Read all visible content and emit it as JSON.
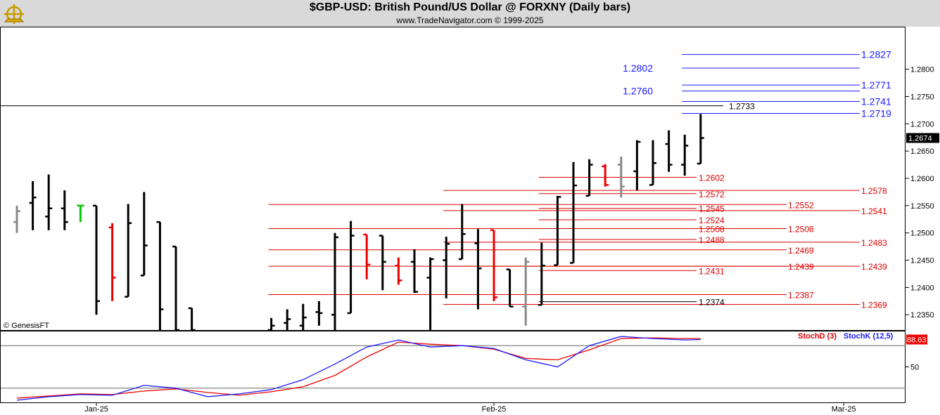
{
  "header": {
    "title": "$GBP-USD:  British Pound/US Dollar @ FORXNY  (Daily bars)",
    "subtitle": "www.TradeNavigator.com © 1999-2025"
  },
  "watermark": "© GenesisFT",
  "colors": {
    "bar": "#000000",
    "bar_gray": "#888888",
    "bar_red": "#ee0000",
    "bar_green": "#00cc00",
    "blue_level": "#1a1aff",
    "red_level": "#dd0000",
    "black_level": "#000000",
    "stoch_d": "#dd0000",
    "stoch_k": "#1a1aff",
    "title_bg": "#d9d9d9"
  },
  "chart_data": [
    {
      "type": "ohlc",
      "title": "$GBP-USD:  British Pound/US Dollar @ FORXNY  (Daily bars)",
      "ylim": [
        1.2322,
        1.2878
      ],
      "y_ticks": [
        "1.2350",
        "1.2400",
        "1.2450",
        "1.2500",
        "1.2550",
        "1.2600",
        "1.2650",
        "1.2700",
        "1.2750",
        "1.2800"
      ],
      "x_ticks": [
        {
          "label": "Jan-25",
          "bar": 5
        },
        {
          "label": "Feb-25",
          "bar": 30
        },
        {
          "label": "Mar-25",
          "bar": 52
        }
      ],
      "last_price": "1.2674",
      "bars": [
        {
          "i": 0,
          "o": 1.252,
          "h": 1.255,
          "l": 1.25,
          "c": 1.254,
          "color": "gray"
        },
        {
          "i": 1,
          "o": 1.2555,
          "h": 1.2595,
          "l": 1.2505,
          "c": 1.2565,
          "color": "black"
        },
        {
          "i": 2,
          "o": 1.253,
          "h": 1.2607,
          "l": 1.2505,
          "c": 1.2545,
          "color": "black"
        },
        {
          "i": 3,
          "o": 1.2545,
          "h": 1.2578,
          "l": 1.2505,
          "c": 1.252,
          "color": "black"
        },
        {
          "i": 4,
          "o": 1.255,
          "h": 1.255,
          "l": 1.252,
          "c": 1.255,
          "color": "green"
        },
        {
          "i": 5,
          "o": 1.255,
          "h": 1.255,
          "l": 1.235,
          "c": 1.2375,
          "color": "black"
        },
        {
          "i": 6,
          "o": 1.251,
          "h": 1.2518,
          "l": 1.2375,
          "c": 1.2418,
          "color": "red"
        },
        {
          "i": 7,
          "o": 1.2383,
          "h": 1.2553,
          "l": 1.2383,
          "c": 1.2518,
          "color": "black"
        },
        {
          "i": 8,
          "o": 1.2422,
          "h": 1.2575,
          "l": 1.2422,
          "c": 1.2477,
          "color": "black"
        },
        {
          "i": 9,
          "o": 1.252,
          "h": 1.252,
          "l": 1.2322,
          "c": 1.236,
          "color": "black"
        },
        {
          "i": 10,
          "o": 1.2475,
          "h": 1.2475,
          "l": 1.2322,
          "c": 1.2322,
          "color": "black"
        },
        {
          "i": 11,
          "o": 1.2362,
          "h": 1.2362,
          "l": 1.2322,
          "c": 1.2322,
          "color": "black"
        },
        {
          "i": 16,
          "o": 1.2322,
          "h": 1.2344,
          "l": 1.2322,
          "c": 1.233,
          "color": "black"
        },
        {
          "i": 17,
          "o": 1.2335,
          "h": 1.236,
          "l": 1.2322,
          "c": 1.2342,
          "color": "black"
        },
        {
          "i": 18,
          "o": 1.233,
          "h": 1.237,
          "l": 1.2322,
          "c": 1.2345,
          "color": "black"
        },
        {
          "i": 19,
          "o": 1.2355,
          "h": 1.2375,
          "l": 1.233,
          "c": 1.2353,
          "color": "black"
        },
        {
          "i": 20,
          "o": 1.235,
          "h": 1.25,
          "l": 1.2322,
          "c": 1.2492,
          "color": "black"
        },
        {
          "i": 21,
          "o": 1.2353,
          "h": 1.2522,
          "l": 1.2353,
          "c": 1.2495,
          "color": "black"
        },
        {
          "i": 22,
          "o": 1.2497,
          "h": 1.2497,
          "l": 1.2415,
          "c": 1.2442,
          "color": "red"
        },
        {
          "i": 23,
          "o": 1.2495,
          "h": 1.2495,
          "l": 1.2395,
          "c": 1.2447,
          "color": "black"
        },
        {
          "i": 24,
          "o": 1.244,
          "h": 1.2455,
          "l": 1.2405,
          "c": 1.2413,
          "color": "red"
        },
        {
          "i": 25,
          "o": 1.2447,
          "h": 1.247,
          "l": 1.239,
          "c": 1.2392,
          "color": "black"
        },
        {
          "i": 26,
          "o": 1.2418,
          "h": 1.2455,
          "l": 1.2322,
          "c": 1.2452,
          "color": "black"
        },
        {
          "i": 27,
          "o": 1.245,
          "h": 1.2493,
          "l": 1.238,
          "c": 1.248,
          "color": "black"
        },
        {
          "i": 28,
          "o": 1.2452,
          "h": 1.2553,
          "l": 1.2452,
          "c": 1.2498,
          "color": "black"
        },
        {
          "i": 29,
          "o": 1.2481,
          "h": 1.2507,
          "l": 1.236,
          "c": 1.2435,
          "color": "black"
        },
        {
          "i": 30,
          "o": 1.2505,
          "h": 1.2505,
          "l": 1.2375,
          "c": 1.2382,
          "color": "red"
        },
        {
          "i": 31,
          "o": 1.2433,
          "h": 1.2433,
          "l": 1.2365,
          "c": 1.2365,
          "color": "black"
        },
        {
          "i": 32,
          "o": 1.2365,
          "h": 1.2455,
          "l": 1.233,
          "c": 1.2447,
          "color": "gray"
        },
        {
          "i": 33,
          "o": 1.2368,
          "h": 1.2482,
          "l": 1.2368,
          "c": 1.244,
          "color": "black"
        },
        {
          "i": 34,
          "o": 1.2441,
          "h": 1.2568,
          "l": 1.2441,
          "c": 1.2566,
          "color": "black"
        },
        {
          "i": 35,
          "o": 1.2445,
          "h": 1.263,
          "l": 1.2445,
          "c": 1.2587,
          "color": "black"
        },
        {
          "i": 36,
          "o": 1.2568,
          "h": 1.2635,
          "l": 1.2568,
          "c": 1.2625,
          "color": "black"
        },
        {
          "i": 37,
          "o": 1.2622,
          "h": 1.2626,
          "l": 1.2585,
          "c": 1.2588,
          "color": "red"
        },
        {
          "i": 38,
          "o": 1.2625,
          "h": 1.264,
          "l": 1.2565,
          "c": 1.2585,
          "color": "gray"
        },
        {
          "i": 39,
          "o": 1.2613,
          "h": 1.267,
          "l": 1.2578,
          "c": 1.2667,
          "color": "black"
        },
        {
          "i": 40,
          "o": 1.2588,
          "h": 1.267,
          "l": 1.2588,
          "c": 1.2628,
          "color": "black"
        },
        {
          "i": 41,
          "o": 1.2663,
          "h": 1.2688,
          "l": 1.2612,
          "c": 1.2625,
          "color": "black"
        },
        {
          "i": 42,
          "o": 1.2625,
          "h": 1.268,
          "l": 1.2605,
          "c": 1.266,
          "color": "black"
        },
        {
          "i": 43,
          "o": 1.2627,
          "h": 1.2718,
          "l": 1.2627,
          "c": 1.2674,
          "color": "black"
        }
      ],
      "levels": [
        {
          "value": 1.2827,
          "label": "1.2827",
          "color": "blue",
          "from_bar": 42,
          "label_side": "right"
        },
        {
          "value": 1.2802,
          "label": "1.2802",
          "color": "blue",
          "from_bar": 42,
          "label_side": "left"
        },
        {
          "value": 1.2771,
          "label": "1.2771",
          "color": "blue",
          "from_bar": 42,
          "label_side": "right"
        },
        {
          "value": 1.276,
          "label": "1.2760",
          "color": "blue",
          "from_bar": 42,
          "label_side": "left"
        },
        {
          "value": 1.2741,
          "label": "1.2741",
          "color": "blue",
          "from_bar": 42,
          "label_side": "right"
        },
        {
          "value": 1.2733,
          "label": "1.2733",
          "color": "black",
          "from_bar": -1,
          "label_side": "mid"
        },
        {
          "value": 1.2719,
          "label": "1.2719",
          "color": "blue",
          "from_bar": 42,
          "label_side": "right"
        },
        {
          "value": 1.2602,
          "label": "1.2602",
          "color": "red",
          "from_bar": 33,
          "label_side": "mid"
        },
        {
          "value": 1.2578,
          "label": "1.2578",
          "color": "red",
          "from_bar": 27,
          "label_side": "right"
        },
        {
          "value": 1.2572,
          "label": "1.2572",
          "color": "red",
          "from_bar": 33,
          "label_side": "mid"
        },
        {
          "value": 1.2552,
          "label": "1.2552",
          "color": "red",
          "from_bar": 16,
          "label_side": "far"
        },
        {
          "value": 1.2545,
          "label": "1.2545",
          "color": "red",
          "from_bar": 33,
          "label_side": "mid"
        },
        {
          "value": 1.2541,
          "label": "1.2541",
          "color": "red",
          "from_bar": 27,
          "label_side": "right"
        },
        {
          "value": 1.2524,
          "label": "1.2524",
          "color": "red",
          "from_bar": 33,
          "label_side": "mid"
        },
        {
          "value": 1.2508,
          "label": "1.2508",
          "color": "red",
          "from_bar": 33,
          "label_side": "mid"
        },
        {
          "value": 1.2508,
          "label": "1.2508",
          "color": "red",
          "from_bar": 16,
          "label_side": "far"
        },
        {
          "value": 1.2488,
          "label": "1.2488",
          "color": "red",
          "from_bar": 33,
          "label_side": "mid"
        },
        {
          "value": 1.2483,
          "label": "1.2483",
          "color": "red",
          "from_bar": 27,
          "label_side": "right"
        },
        {
          "value": 1.2469,
          "label": "1.2469",
          "color": "red",
          "from_bar": 16,
          "label_side": "far"
        },
        {
          "value": 1.2439,
          "label": "1.2439",
          "color": "red",
          "from_bar": 27,
          "label_side": "right"
        },
        {
          "value": 1.2439,
          "label": "1.2439",
          "color": "red",
          "from_bar": 16,
          "label_side": "far"
        },
        {
          "value": 1.2431,
          "label": "1.2431",
          "color": "red",
          "from_bar": 33,
          "label_side": "mid"
        },
        {
          "value": 1.2387,
          "label": "1.2387",
          "color": "red",
          "from_bar": 16,
          "label_side": "far"
        },
        {
          "value": 1.2374,
          "label": "1.2374",
          "color": "black",
          "from_bar": 33,
          "label_side": "mid"
        },
        {
          "value": 1.2369,
          "label": "1.2369",
          "color": "red",
          "from_bar": 27,
          "label_side": "right"
        }
      ]
    },
    {
      "type": "line",
      "title": "",
      "ylim": [
        0,
        100
      ],
      "y_ticks": [
        "50"
      ],
      "reference_lines": [
        80,
        20
      ],
      "last_value": "88.63",
      "series": [
        {
          "name": "StochD (3)",
          "color": "red",
          "x": [
            0,
            2,
            4,
            6,
            8,
            10,
            12,
            14,
            16,
            18,
            20,
            22,
            24,
            26,
            28,
            30,
            32,
            34,
            36,
            38,
            40,
            42,
            43
          ],
          "y": [
            6,
            9,
            12,
            11,
            16,
            19,
            14,
            10,
            15,
            22,
            38,
            64,
            85,
            82,
            80,
            75,
            62,
            60,
            74,
            90,
            91,
            90,
            90
          ]
        },
        {
          "name": "StochK (12,5)",
          "color": "blue",
          "x": [
            0,
            2,
            4,
            6,
            8,
            10,
            12,
            14,
            16,
            18,
            20,
            22,
            24,
            26,
            28,
            30,
            32,
            34,
            36,
            38,
            40,
            42,
            43
          ],
          "y": [
            3,
            8,
            11,
            10,
            24,
            20,
            8,
            12,
            18,
            32,
            54,
            78,
            88,
            78,
            80,
            76,
            60,
            50,
            80,
            93,
            90,
            88,
            88.63
          ]
        }
      ]
    }
  ]
}
